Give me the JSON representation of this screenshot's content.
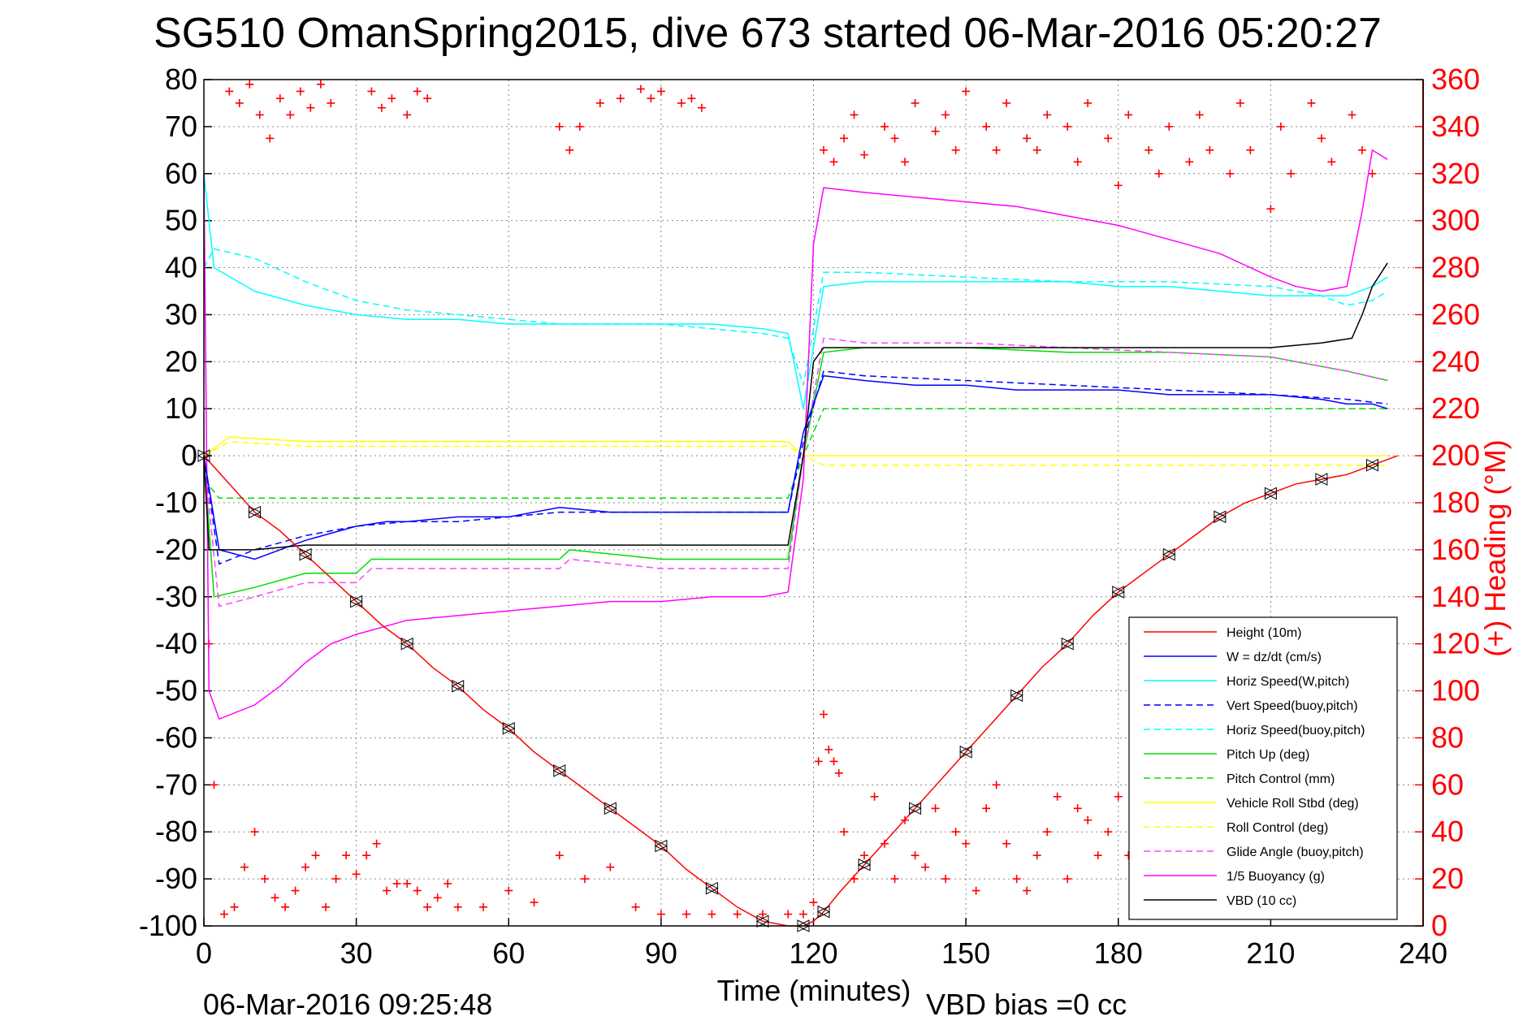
{
  "chart_data": {
    "type": "line",
    "title": "SG510 OmanSpring2015, dive 673 started 06-Mar-2016 05:20:27",
    "xlabel": "Time (minutes)",
    "ylabel": "",
    "y2label": "(+) Heading (°M)",
    "xlim": [
      0,
      240
    ],
    "ylim": [
      -100,
      80
    ],
    "y2lim": [
      0,
      360
    ],
    "xticks": [
      0,
      30,
      60,
      90,
      120,
      150,
      180,
      210,
      240
    ],
    "yticks": [
      -100,
      -90,
      -80,
      -70,
      -60,
      -50,
      -40,
      -30,
      -20,
      -10,
      0,
      10,
      20,
      30,
      40,
      50,
      60,
      70,
      80
    ],
    "y2ticks": [
      0,
      20,
      40,
      60,
      80,
      100,
      120,
      140,
      160,
      180,
      200,
      220,
      240,
      260,
      280,
      300,
      320,
      340,
      360
    ],
    "grid": true,
    "legend_position": "bottom-right",
    "footer_left": "06-Mar-2016 09:25:48",
    "footer_right": "VBD bias =0 cc",
    "series": [
      {
        "name": "Height (10m)",
        "color": "#ff0000",
        "style": "solid",
        "x": [
          0,
          5,
          10,
          15,
          20,
          25,
          30,
          35,
          40,
          45,
          50,
          55,
          60,
          65,
          70,
          75,
          80,
          85,
          90,
          95,
          100,
          105,
          110,
          115,
          118,
          120,
          122,
          125,
          130,
          135,
          140,
          145,
          150,
          155,
          160,
          165,
          170,
          175,
          180,
          185,
          190,
          195,
          200,
          205,
          210,
          215,
          220,
          225,
          230,
          235
        ],
        "values": [
          0,
          -6,
          -12,
          -16,
          -21,
          -26,
          -31,
          -36,
          -40,
          -45,
          -49,
          -54,
          -58,
          -63,
          -67,
          -71,
          -75,
          -79,
          -83,
          -88,
          -92,
          -96,
          -99,
          -100,
          -100,
          -99,
          -97,
          -93,
          -87,
          -81,
          -75,
          -69,
          -63,
          -57,
          -51,
          -45,
          -40,
          -34,
          -29,
          -25,
          -21,
          -17,
          -13,
          -10,
          -8,
          -6,
          -5,
          -4,
          -2,
          0
        ]
      },
      {
        "name": "W = dz/dt (cm/s)",
        "color": "#0000ff",
        "style": "solid",
        "x": [
          0,
          3,
          10,
          20,
          30,
          36,
          40,
          50,
          60,
          70,
          80,
          90,
          100,
          110,
          115,
          118,
          122,
          130,
          140,
          150,
          160,
          170,
          180,
          190,
          200,
          210,
          220,
          225,
          230,
          233
        ],
        "values": [
          0,
          -20,
          -22,
          -18,
          -15,
          -14,
          -14,
          -13,
          -13,
          -11,
          -12,
          -12,
          -12,
          -12,
          -12,
          5,
          17,
          16,
          15,
          15,
          14,
          14,
          14,
          13,
          13,
          13,
          12,
          11,
          11,
          10
        ]
      },
      {
        "name": "Horiz Speed(W,pitch)",
        "color": "#00ffff",
        "style": "solid",
        "x": [
          0,
          2,
          10,
          20,
          30,
          40,
          50,
          60,
          70,
          80,
          90,
          100,
          110,
          115,
          118,
          122,
          130,
          140,
          150,
          160,
          170,
          180,
          190,
          200,
          210,
          220,
          225,
          230,
          233
        ],
        "values": [
          60,
          40,
          35,
          32,
          30,
          29,
          29,
          28,
          28,
          28,
          28,
          28,
          27,
          26,
          10,
          36,
          37,
          37,
          37,
          37,
          37,
          36,
          36,
          35,
          34,
          34,
          34,
          36,
          38
        ]
      },
      {
        "name": "Vert Speed(buoy,pitch)",
        "color": "#0000ff",
        "style": "dashed",
        "x": [
          0,
          3,
          10,
          20,
          30,
          40,
          50,
          60,
          70,
          80,
          90,
          100,
          110,
          115,
          118,
          122,
          130,
          150,
          170,
          190,
          210,
          225,
          233
        ],
        "values": [
          0,
          -23,
          -20,
          -17,
          -15,
          -14,
          -14,
          -13,
          -12,
          -12,
          -12,
          -12,
          -12,
          -12,
          3,
          18,
          17,
          16,
          15,
          14,
          13,
          12,
          11
        ]
      },
      {
        "name": "Horiz Speed(buoy,pitch)",
        "color": "#00ffff",
        "style": "dashed",
        "x": [
          0,
          2,
          10,
          20,
          30,
          40,
          50,
          60,
          70,
          80,
          90,
          100,
          110,
          115,
          118,
          122,
          130,
          150,
          170,
          190,
          210,
          220,
          225,
          230,
          233
        ],
        "values": [
          40,
          44,
          42,
          37,
          33,
          31,
          30,
          29,
          28,
          28,
          28,
          27,
          26,
          25,
          15,
          39,
          39,
          38,
          37,
          37,
          36,
          34,
          32,
          33,
          35
        ]
      },
      {
        "name": "Pitch Up (deg)",
        "color": "#00dd00",
        "style": "solid",
        "x": [
          0,
          2,
          10,
          20,
          30,
          33,
          40,
          60,
          70,
          72,
          90,
          110,
          115,
          118,
          122,
          130,
          150,
          170,
          190,
          210,
          220,
          225,
          233
        ],
        "values": [
          0,
          -30,
          -28,
          -25,
          -25,
          -22,
          -22,
          -22,
          -22,
          -20,
          -22,
          -22,
          -22,
          0,
          22,
          23,
          23,
          22,
          22,
          21,
          19,
          18,
          16
        ]
      },
      {
        "name": "Pitch Control (mm)",
        "color": "#00dd00",
        "style": "dashed",
        "x": [
          0,
          3,
          10,
          20,
          30,
          40,
          60,
          80,
          100,
          115,
          118,
          122,
          130,
          150,
          170,
          190,
          210,
          225,
          233
        ],
        "values": [
          -5,
          -9,
          -9,
          -9,
          -9,
          -9,
          -9,
          -9,
          -9,
          -9,
          0,
          10,
          10,
          10,
          10,
          10,
          10,
          10,
          10
        ]
      },
      {
        "name": "Vehicle Roll Stbd (deg)",
        "color": "#ffff00",
        "style": "solid",
        "x": [
          0,
          5,
          20,
          40,
          60,
          80,
          100,
          115,
          118,
          122,
          140,
          160,
          180,
          200,
          220,
          233
        ],
        "values": [
          0,
          4,
          3,
          3,
          3,
          3,
          3,
          3,
          0,
          0,
          0,
          0,
          0,
          0,
          0,
          0
        ]
      },
      {
        "name": "Roll Control (deg)",
        "color": "#ffff00",
        "style": "dashed",
        "x": [
          0,
          5,
          20,
          40,
          60,
          80,
          100,
          115,
          118,
          122,
          140,
          160,
          180,
          200,
          220,
          233
        ],
        "values": [
          0,
          3,
          2,
          2,
          2,
          2,
          2,
          2,
          0,
          -2,
          -2,
          -2,
          -2,
          -2,
          -2,
          -2
        ]
      },
      {
        "name": "Glide Angle (buoy,pitch)",
        "color": "#ff44ff",
        "style": "dashed",
        "x": [
          0,
          3,
          10,
          20,
          30,
          33,
          40,
          60,
          70,
          72,
          90,
          110,
          115,
          118,
          122,
          130,
          150,
          170,
          190,
          210,
          225,
          233
        ],
        "values": [
          0,
          -32,
          -30,
          -27,
          -27,
          -24,
          -24,
          -24,
          -24,
          -22,
          -24,
          -24,
          -24,
          0,
          25,
          24,
          24,
          23,
          22,
          21,
          18,
          16
        ]
      },
      {
        "name": "1/5 Buoyancy (g)",
        "color": "#ff00ff",
        "style": "solid",
        "x": [
          0,
          1,
          3,
          10,
          15,
          20,
          25,
          30,
          40,
          50,
          60,
          70,
          80,
          90,
          100,
          110,
          115,
          118,
          120,
          122,
          130,
          140,
          150,
          160,
          170,
          180,
          190,
          200,
          210,
          215,
          220,
          225,
          228,
          230,
          233
        ],
        "values": [
          60,
          -50,
          -56,
          -53,
          -49,
          -44,
          -40,
          -38,
          -35,
          -34,
          -33,
          -32,
          -31,
          -31,
          -30,
          -30,
          -29,
          -5,
          45,
          57,
          56,
          55,
          54,
          53,
          51,
          49,
          46,
          43,
          38,
          36,
          35,
          36,
          52,
          65,
          63
        ]
      },
      {
        "name": "VBD (10 cc)",
        "color": "#000000",
        "style": "solid",
        "x": [
          0,
          1,
          2,
          10,
          20,
          30,
          60,
          90,
          110,
          115,
          118,
          120,
          122,
          150,
          180,
          210,
          220,
          226,
          228,
          230,
          233
        ],
        "values": [
          0,
          -20,
          -20,
          -20,
          -19,
          -19,
          -19,
          -19,
          -19,
          -19,
          0,
          20,
          23,
          23,
          23,
          23,
          24,
          25,
          30,
          36,
          41
        ]
      }
    ],
    "heading_series": {
      "name": "(+) Heading (°M)",
      "color": "#ff0000",
      "marker": "+",
      "x": [
        1,
        2,
        4,
        6,
        8,
        10,
        12,
        14,
        16,
        18,
        20,
        22,
        24,
        26,
        28,
        30,
        32,
        34,
        36,
        38,
        40,
        42,
        44,
        46,
        48,
        50,
        55,
        60,
        65,
        70,
        75,
        80,
        85,
        90,
        95,
        100,
        105,
        110,
        115,
        118,
        120,
        121,
        122,
        123,
        124,
        125,
        126,
        128,
        130,
        132,
        134,
        136,
        138,
        140,
        142,
        144,
        146,
        148,
        150,
        152,
        154,
        156,
        158,
        160,
        162,
        164,
        166,
        168,
        170,
        172,
        174,
        176,
        178,
        180,
        182,
        184,
        186,
        188,
        190,
        192,
        194,
        196,
        198,
        200,
        202,
        204,
        206,
        208,
        210,
        212,
        214,
        216,
        218,
        220,
        222,
        224,
        226,
        228,
        230,
        232
      ],
      "values": [
        120,
        60,
        5,
        8,
        25,
        40,
        20,
        12,
        8,
        15,
        25,
        30,
        8,
        20,
        30,
        22,
        30,
        35,
        15,
        18,
        18,
        15,
        8,
        12,
        18,
        8,
        8,
        15,
        10,
        30,
        20,
        25,
        8,
        5,
        5,
        5,
        5,
        5,
        5,
        5,
        10,
        70,
        90,
        75,
        70,
        65,
        40,
        20,
        30,
        55,
        35,
        20,
        45,
        30,
        25,
        50,
        20,
        40,
        35,
        15,
        50,
        60,
        35,
        20,
        15,
        30,
        40,
        55,
        20,
        50,
        45,
        30,
        40,
        55,
        30,
        25,
        50,
        60,
        40,
        25,
        35,
        55,
        30,
        45,
        60,
        30,
        40,
        45,
        25,
        50,
        55,
        40,
        30,
        45,
        60,
        35,
        30,
        50,
        45,
        40
      ]
    },
    "heading_series_top": {
      "x": [
        5,
        7,
        9,
        11,
        13,
        15,
        17,
        19,
        21,
        23,
        25,
        33,
        35,
        37,
        40,
        42,
        44,
        70,
        72,
        74,
        78,
        82,
        86,
        88,
        90,
        94,
        96,
        98,
        122,
        124,
        126,
        128,
        130,
        134,
        136,
        138,
        140,
        144,
        146,
        148,
        150,
        154,
        156,
        158,
        162,
        164,
        166,
        170,
        172,
        174,
        178,
        180,
        182,
        186,
        188,
        190,
        194,
        196,
        198,
        202,
        204,
        206,
        210,
        212,
        214,
        218,
        220,
        222,
        226,
        228,
        230
      ],
      "values": [
        355,
        350,
        358,
        345,
        335,
        352,
        345,
        355,
        348,
        358,
        350,
        355,
        348,
        352,
        345,
        355,
        352,
        340,
        330,
        340,
        350,
        352,
        356,
        352,
        355,
        350,
        352,
        348,
        330,
        325,
        335,
        345,
        328,
        340,
        335,
        325,
        350,
        338,
        345,
        330,
        355,
        340,
        330,
        350,
        335,
        330,
        345,
        340,
        325,
        350,
        335,
        315,
        345,
        330,
        320,
        340,
        325,
        345,
        330,
        320,
        350,
        330,
        305,
        340,
        320,
        350,
        335,
        325,
        345,
        330,
        320
      ]
    }
  }
}
